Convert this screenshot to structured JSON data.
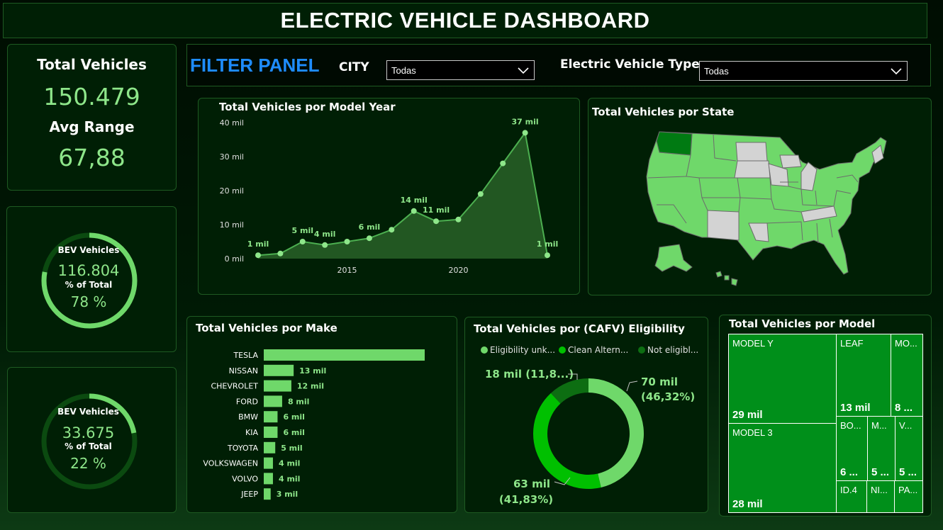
{
  "header": {
    "title": "ELECTRIC VEHICLE DASHBOARD"
  },
  "kpis": {
    "total_label": "Total Vehicles",
    "total_value": "150.479",
    "range_label": "Avg Range",
    "range_value": "67,88"
  },
  "donut_cards": [
    {
      "label": "BEV Vehicles",
      "value": "116.804",
      "pct_label": "% of Total",
      "pct": "78 %",
      "fraction": 0.78
    },
    {
      "label": "BEV Vehicles",
      "value": "33.675",
      "pct_label": "% of Total",
      "pct": "22 %",
      "fraction": 0.22
    }
  ],
  "filter": {
    "title": "FILTER PANEL",
    "city_label": "CITY",
    "city_value": "Todas",
    "type_label": "Electric Vehicle Type",
    "type_value": "Todas"
  },
  "map": {
    "title": "Total Vehicles por State"
  },
  "colors": {
    "accent": "#8ee68a",
    "dark": "#001f05",
    "green": "#008f1a",
    "bright": "#00c000",
    "filter_title": "#1e8cff"
  },
  "chart_data": [
    {
      "type": "area",
      "title": "Total Vehicles por Model Year",
      "x": [
        2011,
        2012,
        2013,
        2014,
        2015,
        2016,
        2017,
        2018,
        2019,
        2020,
        2021,
        2022,
        2023,
        2024
      ],
      "values": [
        1,
        1.5,
        5,
        4,
        5,
        6,
        8.5,
        14,
        11,
        11.5,
        19,
        28,
        37,
        1
      ],
      "data_labels": [
        "1 mil",
        "",
        "5 mil",
        "4 mil",
        "",
        "6 mil",
        "",
        "14 mil",
        "11 mil",
        "",
        "",
        "",
        "37 mil",
        "1 mil"
      ],
      "ylim": [
        0,
        40
      ],
      "yticks": [
        "0 mil",
        "10 mil",
        "20 mil",
        "30 mil",
        "40 mil"
      ],
      "xticks": [
        "2015",
        "2020"
      ]
    },
    {
      "type": "bar",
      "title": "Total Vehicles por Make",
      "categories": [
        "TESLA",
        "NISSAN",
        "CHEVROLET",
        "FORD",
        "BMW",
        "KIA",
        "TOYOTA",
        "VOLKSWAGEN",
        "VOLVO",
        "JEEP"
      ],
      "values": [
        70,
        13,
        12,
        8,
        6,
        6,
        5,
        4,
        4,
        3
      ],
      "data_labels": [
        "",
        "13 mil",
        "12 mil",
        "8 mil",
        "6 mil",
        "6 mil",
        "5 mil",
        "4 mil",
        "4 mil",
        "3 mil"
      ]
    },
    {
      "type": "pie",
      "title": "Total Vehicles por (CAFV) Eligibility",
      "legend": [
        "Eligibility unk...",
        "Clean Altern...",
        "Not eligibl..."
      ],
      "values": [
        70,
        63,
        18
      ],
      "labels": [
        "70 mil",
        "63 mil",
        "18 mil (11,8...)"
      ],
      "percents": [
        "(46,32%)",
        "(41,83%)",
        ""
      ],
      "colors": [
        "#6fd86a",
        "#00c000",
        "#0d6e12"
      ]
    },
    {
      "type": "treemap",
      "title": "Total Vehicles por Model",
      "items": [
        {
          "name": "MODEL Y",
          "value": "29 mil"
        },
        {
          "name": "LEAF",
          "value": "13 mil"
        },
        {
          "name": "MO...",
          "value": "8 ..."
        },
        {
          "name": "MODEL 3",
          "value": "28 mil"
        },
        {
          "name": "BO...",
          "value": "6 ..."
        },
        {
          "name": "M...",
          "value": "5 ..."
        },
        {
          "name": "V...",
          "value": "5 ..."
        },
        {
          "name": "ID.4",
          "value": ""
        },
        {
          "name": "NI...",
          "value": ""
        },
        {
          "name": "PA...",
          "value": ""
        }
      ]
    }
  ]
}
